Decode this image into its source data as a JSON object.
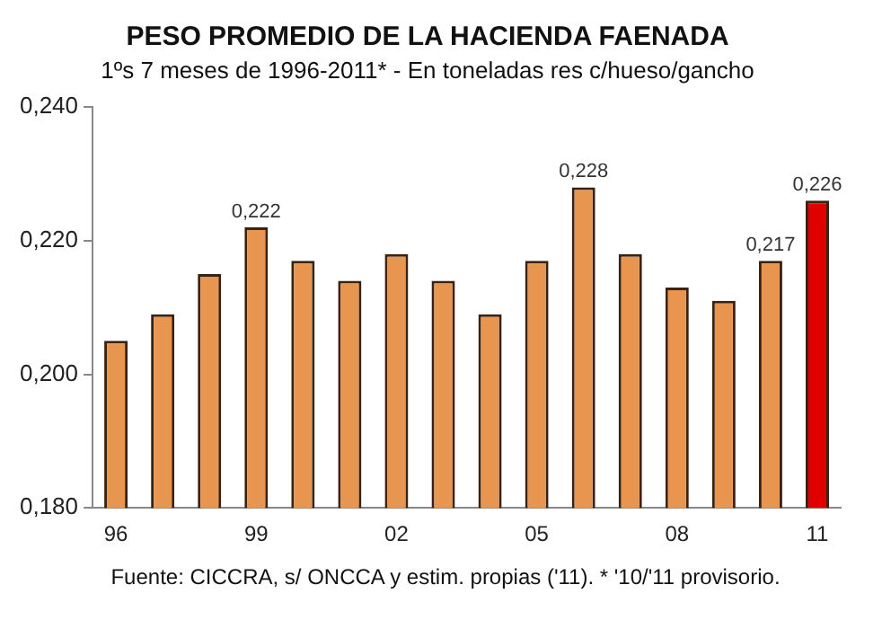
{
  "chart_data": {
    "type": "bar",
    "title": "PESO PROMEDIO DE LA HACIENDA FAENADA",
    "subtitle": "1ºs 7 meses de 1996-2011* - En toneladas res c/hueso/gancho",
    "categories": [
      "96",
      null,
      null,
      "99",
      null,
      null,
      "02",
      null,
      null,
      "05",
      null,
      null,
      "08",
      null,
      null,
      "11"
    ],
    "values": [
      0.205,
      0.209,
      0.215,
      0.222,
      0.217,
      0.214,
      0.218,
      0.214,
      0.209,
      0.217,
      0.228,
      0.218,
      0.213,
      0.211,
      0.217,
      0.226
    ],
    "colors": [
      "#e8964f",
      "#e8964f",
      "#e8964f",
      "#e8964f",
      "#e8964f",
      "#e8964f",
      "#e8964f",
      "#e8964f",
      "#e8964f",
      "#e8964f",
      "#e8964f",
      "#e8964f",
      "#e8964f",
      "#e8964f",
      "#e8964f",
      "#e00000"
    ],
    "value_labels": [
      null,
      null,
      null,
      "0,222",
      null,
      null,
      null,
      null,
      null,
      null,
      "0,228",
      null,
      null,
      null,
      "0,217",
      "0,226"
    ],
    "ylim": [
      0.18,
      0.24
    ],
    "yticks": [
      {
        "value": 0.18,
        "label": "0,180"
      },
      {
        "value": 0.2,
        "label": "0,200"
      },
      {
        "value": 0.22,
        "label": "0,220"
      },
      {
        "value": 0.24,
        "label": "0,240"
      }
    ],
    "grid": false,
    "legend": false,
    "annotations": [
      "Fuente: CICCRA, s/ ONCCA y estim. propias ('11). * '10/'11 provisorio."
    ]
  }
}
